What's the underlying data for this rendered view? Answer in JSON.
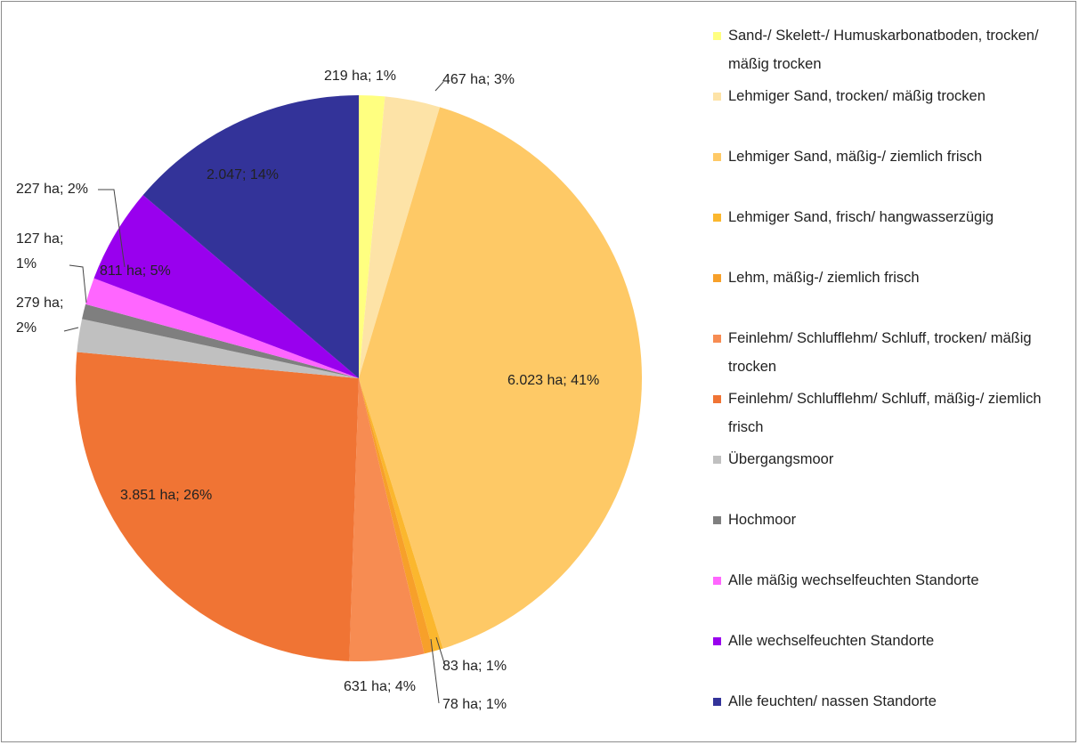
{
  "chart_data": {
    "type": "pie",
    "categories": [
      "Sand-/ Skelett-/ Humuskarbonatboden, trocken/ mäßig trocken",
      "Lehmiger Sand, trocken/ mäßig trocken",
      "Lehmiger Sand, mäßig-/ ziemlich frisch",
      "Lehmiger Sand, frisch/ hangwasserzügig",
      "Lehm, mäßig-/ ziemlich frisch",
      "Feinlehm/ Schlufflehm/ Schluff, trocken/ mäßig trocken",
      "Feinlehm/ Schlufflehm/ Schluff, mäßig-/ ziemlich frisch",
      "Übergangsmoor",
      "Hochmoor",
      "Alle mäßig wechselfeuchten Standorte",
      "Alle wechselfeuchten Standorte",
      "Alle feuchten/ nassen Standorte"
    ],
    "values": [
      219,
      467,
      6023,
      83,
      78,
      631,
      3851,
      279,
      127,
      227,
      811,
      2047
    ],
    "value_labels": [
      "219 ha; 1%",
      "467 ha; 3%",
      "6.023 ha; 41%",
      "83 ha; 1%",
      "78 ha; 1%",
      "631 ha; 4%",
      "3.851 ha; 26%",
      "279 ha; 2%",
      "127 ha; 1%",
      "227 ha; 2%",
      "811 ha; 5%",
      "2.047; 14%"
    ],
    "colors": [
      "#ffff80",
      "#fde3a7",
      "#fec966",
      "#fbb72e",
      "#f7a02a",
      "#f78c52",
      "#f07434",
      "#c0c0c0",
      "#7f7f7f",
      "#ff66ff",
      "#9900ee",
      "#333399"
    ],
    "legend": "right"
  }
}
